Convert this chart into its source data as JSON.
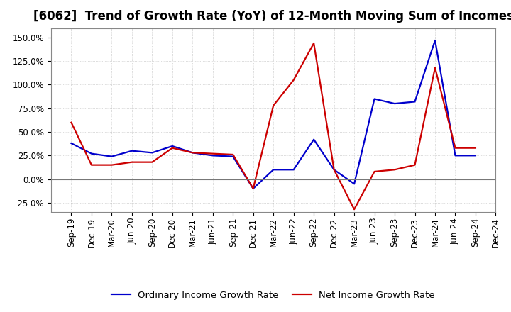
{
  "title": "[6062]  Trend of Growth Rate (YoY) of 12-Month Moving Sum of Incomes",
  "x_labels": [
    "Sep-19",
    "Dec-19",
    "Mar-20",
    "Jun-20",
    "Sep-20",
    "Dec-20",
    "Mar-21",
    "Jun-21",
    "Sep-21",
    "Dec-21",
    "Mar-22",
    "Jun-22",
    "Sep-22",
    "Dec-22",
    "Mar-23",
    "Jun-23",
    "Sep-23",
    "Dec-23",
    "Mar-24",
    "Jun-24",
    "Sep-24",
    "Dec-24"
  ],
  "ordinary_income": [
    0.38,
    0.27,
    0.24,
    0.3,
    0.28,
    0.35,
    0.28,
    0.25,
    0.24,
    -0.1,
    0.1,
    0.1,
    0.42,
    0.1,
    -0.05,
    0.85,
    0.8,
    0.82,
    1.47,
    0.25,
    0.25,
    null
  ],
  "net_income": [
    0.6,
    0.15,
    0.15,
    0.18,
    0.18,
    0.33,
    0.28,
    0.27,
    0.26,
    -0.1,
    0.78,
    1.05,
    1.44,
    0.1,
    -0.32,
    0.08,
    0.1,
    0.15,
    1.18,
    0.33,
    0.33,
    null
  ],
  "ordinary_color": "#0000cc",
  "net_color": "#cc0000",
  "background_color": "#ffffff",
  "plot_bg_color": "#ffffff",
  "grid_color": "#aaaaaa",
  "yticks": [
    -0.25,
    0.0,
    0.25,
    0.5,
    0.75,
    1.0,
    1.25,
    1.5
  ],
  "ylim_low": -0.35,
  "ylim_high": 1.6,
  "legend_labels": [
    "Ordinary Income Growth Rate",
    "Net Income Growth Rate"
  ],
  "title_fontsize": 12,
  "axis_fontsize": 8.5,
  "legend_fontsize": 9.5
}
